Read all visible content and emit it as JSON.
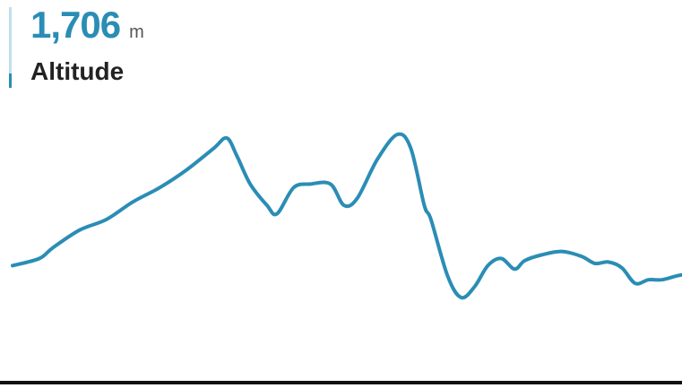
{
  "stat": {
    "value": "1,706",
    "unit": "m",
    "label": "Altitude"
  },
  "colors": {
    "accent": "#2a8db5",
    "accent_light": "#bfe0ec",
    "text": "#222222"
  },
  "chart_data": {
    "type": "line",
    "title": "",
    "xlabel": "",
    "ylabel": "",
    "grid": false,
    "legend": "none",
    "ylim": [
      1350,
      1800
    ],
    "xlim": [
      0,
      100
    ],
    "series": [
      {
        "color": "#2a8db5",
        "x": [
          0,
          4,
          6,
          10,
          14,
          18,
          22,
          26,
          30,
          32,
          33.5,
          35.5,
          38,
          39.5,
          42,
          44.5,
          47.5,
          49.5,
          51.5,
          54.5,
          57.5,
          59.5,
          61.5,
          62.5,
          65,
          67,
          69,
          71,
          73,
          75,
          76.5,
          79,
          82,
          85,
          87,
          89,
          91,
          93,
          95,
          97,
          99,
          100
        ],
        "y": [
          1575,
          1585,
          1600,
          1625,
          1640,
          1665,
          1685,
          1710,
          1740,
          1755,
          1730,
          1690,
          1660,
          1648,
          1685,
          1690,
          1690,
          1660,
          1670,
          1725,
          1760,
          1740,
          1660,
          1640,
          1560,
          1530,
          1545,
          1575,
          1585,
          1570,
          1582,
          1590,
          1595,
          1588,
          1578,
          1580,
          1572,
          1550,
          1555,
          1555,
          1560,
          1562
        ]
      }
    ]
  }
}
